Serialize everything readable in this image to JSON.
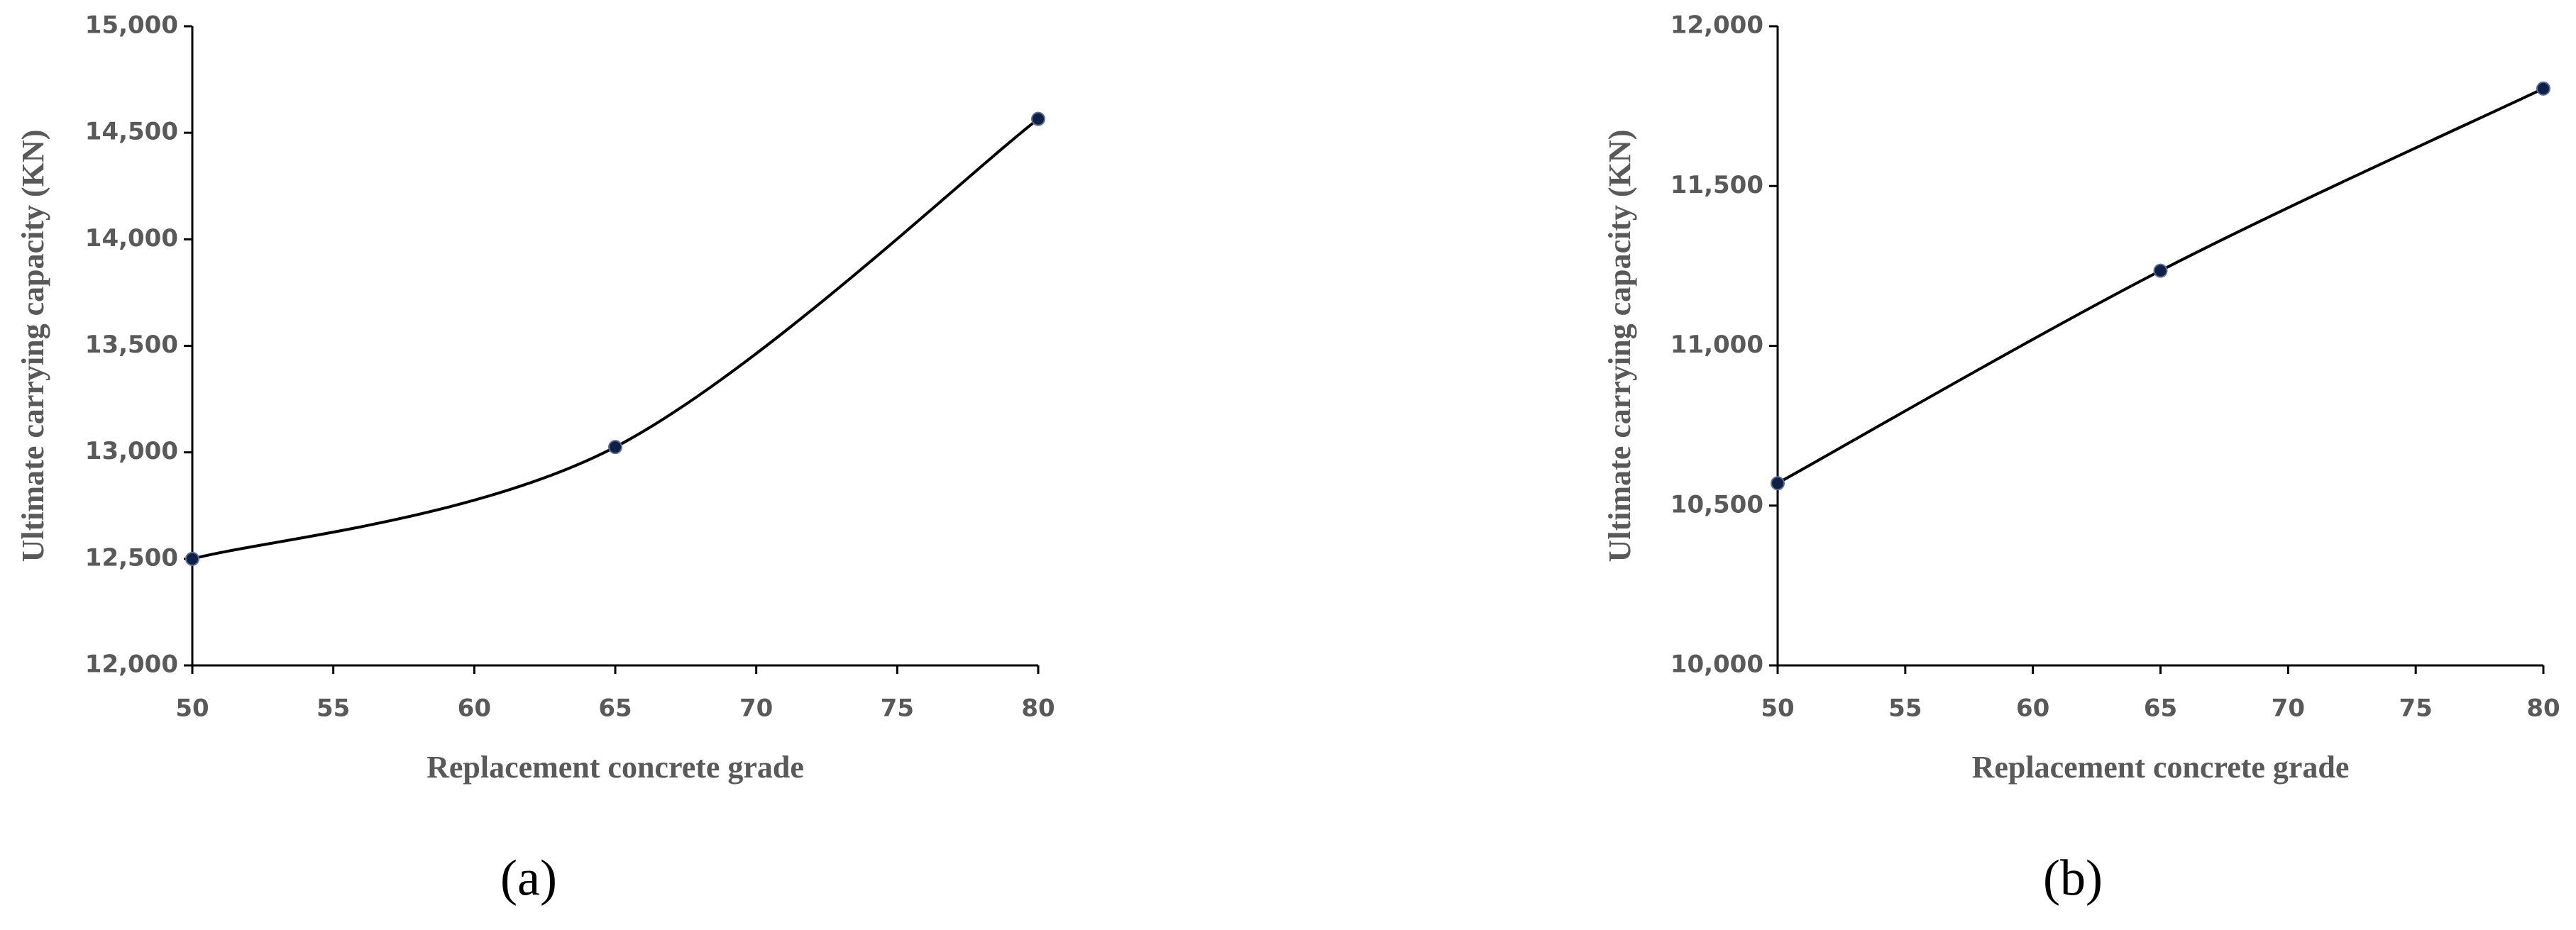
{
  "chart_data": [
    {
      "type": "line",
      "caption": "(a)",
      "x_label": "Replacement concrete grade",
      "y_label": "Ultimate carrying capacity (KN)",
      "x": [
        50,
        65,
        80
      ],
      "series": [
        {
          "name": "Ultimate carrying capacity",
          "color": "#000000",
          "marker_color": "#0f1f45",
          "values": [
            12500,
            13025,
            14565
          ]
        }
      ],
      "xlim": [
        50,
        80
      ],
      "xticks": [
        50,
        55,
        60,
        65,
        70,
        75,
        80
      ],
      "ylim": [
        12000,
        15000
      ],
      "yticks": [
        {
          "value": 12000,
          "label": "12,000"
        },
        {
          "value": 12500,
          "label": "12,500"
        },
        {
          "value": 13000,
          "label": "13,000"
        },
        {
          "value": 13500,
          "label": "13,500"
        },
        {
          "value": 14000,
          "label": "14,000"
        },
        {
          "value": 14500,
          "label": "14,500"
        },
        {
          "value": 15000,
          "label": "15,000"
        }
      ],
      "smooth": true,
      "grid": false
    },
    {
      "type": "line",
      "caption": "(b)",
      "x_label": "Replacement concrete grade",
      "y_label": "Ultimate carrying capacity (KN)",
      "x": [
        50,
        65,
        80
      ],
      "series": [
        {
          "name": "Ultimate carrying capacity",
          "color": "#000000",
          "marker_color": "#0f1f45",
          "values": [
            10570,
            11235,
            11805
          ]
        }
      ],
      "xlim": [
        50,
        80
      ],
      "xticks": [
        50,
        55,
        60,
        65,
        70,
        75,
        80
      ],
      "ylim": [
        10000,
        12000
      ],
      "yticks": [
        {
          "value": 10000,
          "label": "10,000"
        },
        {
          "value": 10500,
          "label": "10,500"
        },
        {
          "value": 11000,
          "label": "11,000"
        },
        {
          "value": 11500,
          "label": "11,500"
        },
        {
          "value": 12000,
          "label": "12,000"
        }
      ],
      "smooth": true,
      "grid": false
    }
  ]
}
